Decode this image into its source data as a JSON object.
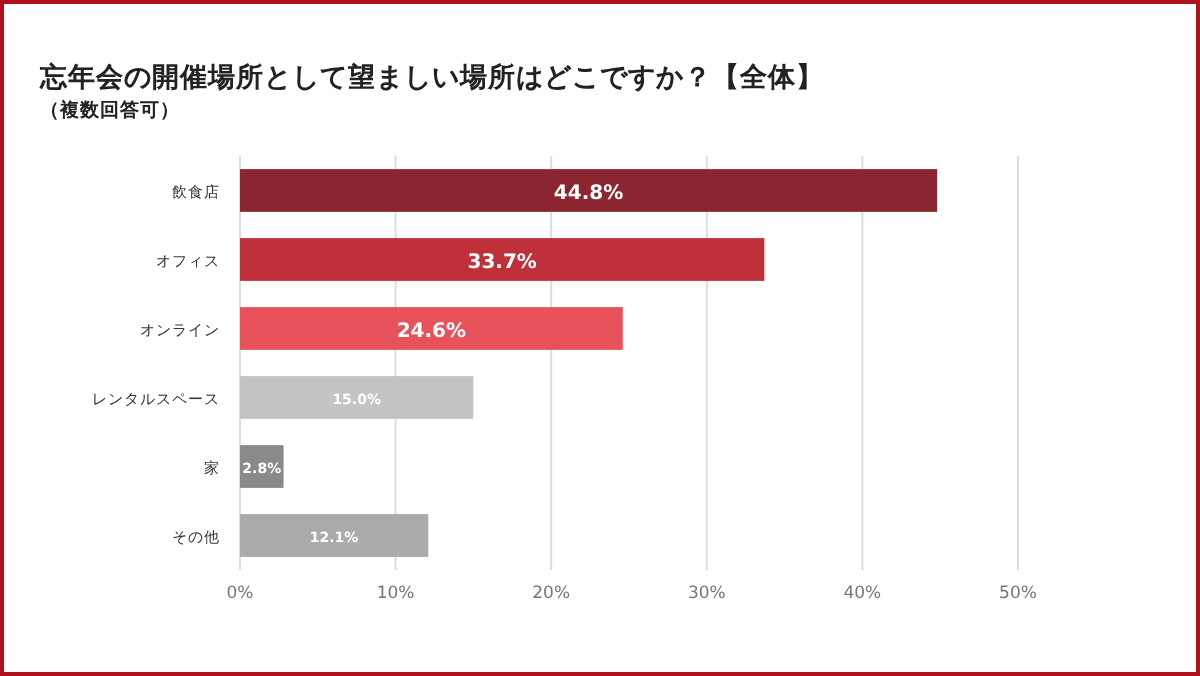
{
  "chart_data": {
    "type": "bar",
    "orientation": "horizontal",
    "title": "忘年会の開催場所として望ましい場所はどこですか？【全体】",
    "subtitle": "（複数回答可）",
    "categories": [
      "飲食店",
      "オフィス",
      "オンライン",
      "レンタルスペース",
      "家",
      "その他"
    ],
    "values": [
      44.8,
      33.7,
      24.6,
      15.0,
      2.8,
      12.1
    ],
    "value_labels": [
      "44.8%",
      "33.7%",
      "24.6%",
      "15.0%",
      "2.8%",
      "12.1%"
    ],
    "colors": [
      "#8b2630",
      "#c0303a",
      "#e8525b",
      "#c4c4c4",
      "#8a8a8a",
      "#ababab"
    ],
    "xlim": [
      0,
      50
    ],
    "xticks": [
      {
        "value": 0,
        "label": "0%"
      },
      {
        "value": 10,
        "label": "10%"
      },
      {
        "value": 20,
        "label": "20%"
      },
      {
        "value": 30,
        "label": "30%"
      },
      {
        "value": 40,
        "label": "40%"
      },
      {
        "value": 50,
        "label": "50%"
      }
    ],
    "grid": "x"
  }
}
